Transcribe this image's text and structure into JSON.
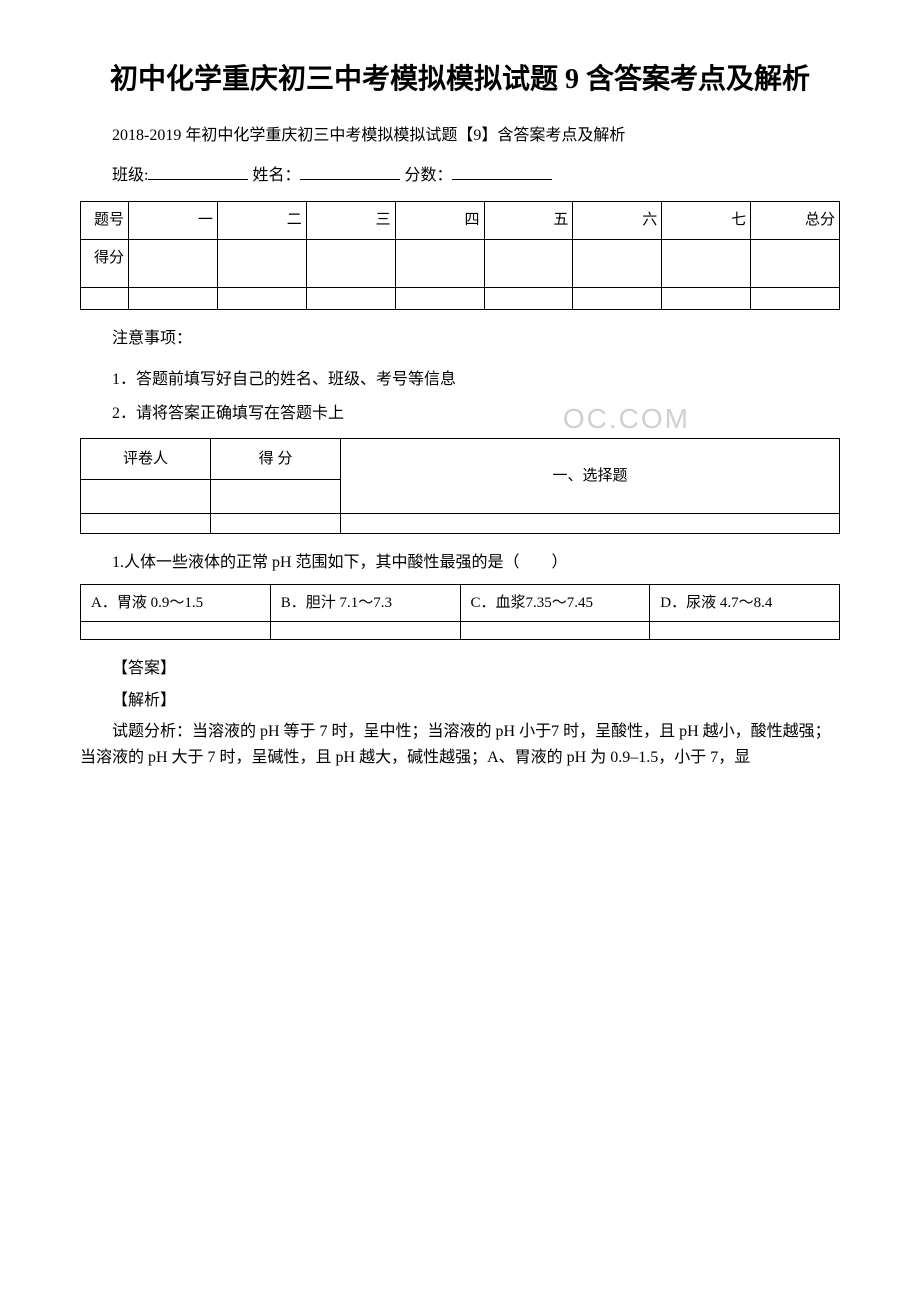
{
  "title": "初中化学重庆初三中考模拟模拟试题 9 含答案考点及解析",
  "subtitle": "2018-2019 年初中化学重庆初三中考模拟模拟试题【9】含答案考点及解析",
  "form": {
    "class_label": "班级:",
    "name_label": "姓名：",
    "score_label": "分数："
  },
  "score_table": {
    "row1_label": "题号",
    "row2_label": "得分",
    "cols": [
      "一",
      "二",
      "三",
      "四",
      "五",
      "六",
      "七",
      "总分"
    ]
  },
  "notice": {
    "heading": "注意事项：",
    "item1": "1．答题前填写好自己的姓名、班级、考号等信息",
    "item2": "2．请将答案正确填写在答题卡上"
  },
  "watermark_text": "OC.COM",
  "grader_table": {
    "col1": "评卷人",
    "col2": "得 分",
    "section": "一、选择题"
  },
  "question1": {
    "text": "1.人体一些液体的正常 pH 范围如下，其中酸性最强的是（　　）",
    "optA": "A．胃液 0.9～1.5",
    "optB": "B．胆汁 7.1～7.3",
    "optC": "C．血浆7.35～7.45",
    "optD": "D．尿液 4.7～8.4"
  },
  "answer": {
    "label": "【答案】",
    "analysis_label": "【解析】",
    "analysis_text": "试题分析：当溶液的 pH 等于 7 时，呈中性；当溶液的 pH 小于7 时，呈酸性，且 pH 越小，酸性越强；当溶液的 pH 大于 7 时，呈碱性，且 pH 越大，碱性越强；A、胃液的 pH 为 0.9–1.5，小于 7，显"
  }
}
